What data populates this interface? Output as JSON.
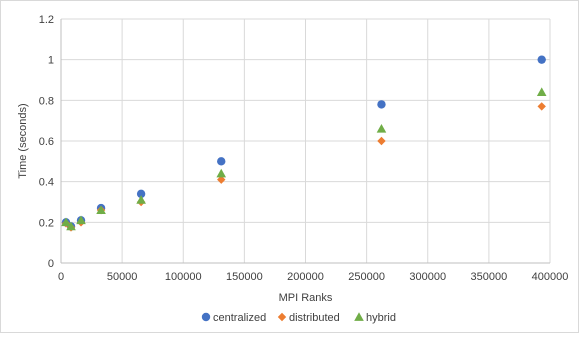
{
  "chart_data": {
    "type": "scatter",
    "xlabel": "MPI Ranks",
    "ylabel": "Time (seconds)",
    "xlim": [
      0,
      400000
    ],
    "ylim": [
      0,
      1.2
    ],
    "x_ticks": [
      "0",
      "50000",
      "100000",
      "150000",
      "200000",
      "250000",
      "300000",
      "350000",
      "400000"
    ],
    "y_ticks": [
      "0",
      "0.2",
      "0.4",
      "0.6",
      "0.8",
      "1",
      "1.2"
    ],
    "grid": true,
    "legend_position": "bottom",
    "series": [
      {
        "name": "centralized",
        "marker": "circle",
        "color": "#4472C4",
        "x": [
          4096,
          8192,
          16384,
          32768,
          65536,
          131072,
          262144,
          393216
        ],
        "y": [
          0.2,
          0.18,
          0.21,
          0.27,
          0.34,
          0.5,
          0.78,
          1.0
        ]
      },
      {
        "name": "distributed",
        "marker": "diamond",
        "color": "#ED7D31",
        "x": [
          4096,
          8192,
          16384,
          32768,
          65536,
          131072,
          262144,
          393216
        ],
        "y": [
          0.195,
          0.175,
          0.2,
          0.26,
          0.3,
          0.41,
          0.6,
          0.77
        ]
      },
      {
        "name": "hybrid",
        "marker": "triangle",
        "color": "#70AD47",
        "x": [
          4096,
          8192,
          16384,
          32768,
          65536,
          131072,
          262144,
          393216
        ],
        "y": [
          0.2,
          0.18,
          0.21,
          0.26,
          0.31,
          0.44,
          0.66,
          0.84
        ]
      }
    ]
  }
}
